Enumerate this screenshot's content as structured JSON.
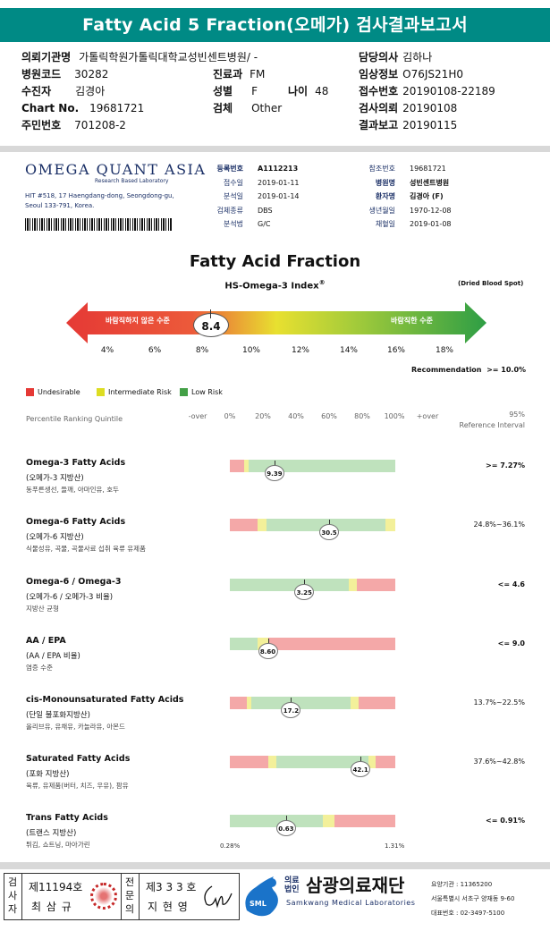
{
  "title": "Fatty Acid 5 Fraction(오메가) 검사결과보고서",
  "info": {
    "hospital_label": "의뢰기관명",
    "hospital_value": "가톨릭학원가톨릭대학교성빈센트병원",
    "doctor_label": "담당의사",
    "doctor_value": "김하나",
    "code_label": "병원코드",
    "code_value": "30282",
    "dept_label": "진료과",
    "dept_value": "FM",
    "clinical_label": "임상정보",
    "clinical_value": "O76JS21H0",
    "patient_label": "수진자",
    "patient_value": "김경아",
    "sex_label": "성별",
    "sex_value": "F",
    "age_label": "나이",
    "age_value": "48",
    "receipt_label": "접수번호",
    "receipt_value": "20190108-22189",
    "chart_label": "Chart No.",
    "chart_value": "19681721",
    "specimen_label": "검체",
    "specimen_value": "Other",
    "request_label": "검사의뢰",
    "request_value": "20190108",
    "id_label": "주민번호",
    "id_value": "701208-2",
    "report_label": "결과보고",
    "report_value": "20190115"
  },
  "lab": {
    "name": "Omega Quant Asia",
    "sub": "Research Based Laboratory",
    "address1": "HIT #518, 17 Haengdang-dong, Seongdong-gu,",
    "address2": "Seoul 133-791, Korea."
  },
  "details_left": [
    {
      "label": "등록번호",
      "value": "A1112213",
      "bold": true
    },
    {
      "label": "접수일",
      "value": "2019-01-11"
    },
    {
      "label": "분석일",
      "value": "2019-01-14"
    },
    {
      "label": "검체종류",
      "value": "DBS"
    },
    {
      "label": "분석법",
      "value": "G/C"
    }
  ],
  "details_right": [
    {
      "label": "참조번호",
      "value": "19681721"
    },
    {
      "label": "병원명",
      "value": "성빈센트병원",
      "bold": true
    },
    {
      "label": "환자명",
      "value": "김경아 (F)",
      "bold": true
    },
    {
      "label": "생년월일",
      "value": "1970-12-08"
    },
    {
      "label": "채혈일",
      "value": "2019-01-08"
    }
  ],
  "index": {
    "heading": "Fatty Acid Fraction",
    "name": "HS-Omega-3 Index",
    "sup": "®",
    "specimen": "(Dried Blood Spot)",
    "value": "8.4",
    "left_text": "바람직하지 않은 수준",
    "right_text": "바람직한 수준",
    "ticks": [
      "4%",
      "6%",
      "8%",
      "10%",
      "12%",
      "14%",
      "16%",
      "18%"
    ],
    "recommendation_label": "Recommendation",
    "recommendation_value": ">= 10.0%"
  },
  "legend": [
    {
      "label": "Undesirable",
      "color": "#e53935"
    },
    {
      "label": "Intermediate Risk",
      "color": "#dddd22"
    },
    {
      "label": "Low Risk",
      "color": "#43a047"
    }
  ],
  "quintile": {
    "label": "Percentile Ranking Quintile",
    "scale": [
      "-over",
      "0%",
      "20%",
      "40%",
      "60%",
      "80%",
      "100%",
      "+over"
    ],
    "ref_top": "95%",
    "ref_bottom": "Reference Interval"
  },
  "chart_data": {
    "type": "table",
    "rows": [
      {
        "name": "Omega-3 Fatty Acids",
        "sub": "(오메가-3 지방산)",
        "foods": "동푸른생선, 들깨, 아마인유, 호두",
        "value": "9.39",
        "ref": ">= 7.27%",
        "segments": [
          [
            "red",
            0,
            8.5
          ],
          [
            "yellow",
            8.5,
            11.5
          ],
          [
            "green",
            11.5,
            100
          ]
        ],
        "marker": 27
      },
      {
        "name": "Omega-6 Fatty Acids",
        "sub": "(오메가-6 지방산)",
        "foods": "식물성유, 곡물, 곡물사료 섭취 육류 유제품",
        "value": "30.5",
        "ref": "24.8%~36.1%",
        "segments": [
          [
            "red",
            0,
            17
          ],
          [
            "yellow",
            17,
            22
          ],
          [
            "green",
            22,
            94
          ],
          [
            "yellow",
            94,
            100
          ]
        ],
        "marker": 60
      },
      {
        "name": "Omega-6 / Omega-3",
        "sub": "(오메가-6 / 오메가-3 비율)",
        "foods": "지방산 균형",
        "value": "3.25",
        "ref": "<= 4.6",
        "segments": [
          [
            "green",
            0,
            72
          ],
          [
            "yellow",
            72,
            77
          ],
          [
            "red",
            77,
            100
          ]
        ],
        "marker": 45
      },
      {
        "name": "AA / EPA",
        "sub": "(AA / EPA 비율)",
        "foods": "염증 수준",
        "value": "8.60",
        "ref": "<= 9.0",
        "segments": [
          [
            "green",
            0,
            17
          ],
          [
            "yellow",
            17,
            23
          ],
          [
            "red",
            23,
            100
          ]
        ],
        "marker": 23
      },
      {
        "name": "cis-Monounsaturated Fatty Acids",
        "sub": "(단일 불포화지방산)",
        "foods": "올리브유, 유채유, 카놀라유, 아몬드",
        "value": "17.2",
        "ref": "13.7%~22.5%",
        "segments": [
          [
            "red",
            0,
            10
          ],
          [
            "yellow",
            10,
            13
          ],
          [
            "green",
            13,
            73
          ],
          [
            "yellow",
            73,
            78
          ],
          [
            "red",
            78,
            100
          ]
        ],
        "marker": 37
      },
      {
        "name": "Saturated Fatty Acids",
        "sub": "(포화 지방산)",
        "foods": "육류, 유제품(버터, 치즈, 우유), 팜유",
        "value": "42.1",
        "ref": "37.6%~42.8%",
        "segments": [
          [
            "red",
            0,
            23
          ],
          [
            "yellow",
            23,
            28
          ],
          [
            "green",
            28,
            84
          ],
          [
            "yellow",
            84,
            88
          ],
          [
            "red",
            88,
            100
          ]
        ],
        "marker": 79
      },
      {
        "name": "Trans Fatty Acids",
        "sub": "(트랜스 지방산)",
        "foods": "튀김, 쇼트닝, 마아가린",
        "value": "0.63",
        "ref": "<= 0.91%",
        "segments": [
          [
            "green",
            0,
            56
          ],
          [
            "yellow",
            56,
            63
          ],
          [
            "red",
            63,
            100
          ]
        ],
        "marker": 34
      }
    ],
    "trans_min": "0.28%",
    "trans_max": "1.31%"
  },
  "footer": {
    "left_vertical": "검사자",
    "left_no": "제11194호",
    "left_name": "최 삼 규",
    "right_vertical": "전문의",
    "right_no": "제3 3 3 호",
    "right_name": "지 현 영",
    "org_small": "의료법인",
    "org_name": "삼광의료재단",
    "org_en": "Samkwang Medical Laboratories",
    "logo": "SML",
    "code_line": "요양기관 : 11365200",
    "addr_line": "서울특별시 서초구 양재동 9-60",
    "tel_line": "대표번호 : 02-3497-5100"
  }
}
